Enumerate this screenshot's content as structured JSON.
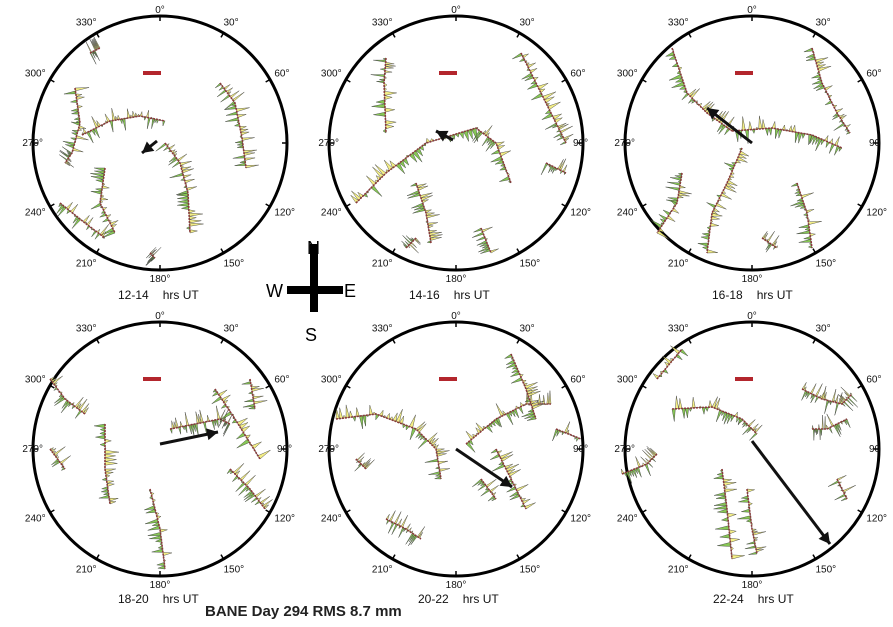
{
  "title": "BANE Day 294 RMS 8.7 mm",
  "hrs_label": "hrs UT",
  "compass": {
    "n": "N",
    "e": "E",
    "s": "S",
    "w": "W"
  },
  "panels": [
    {
      "label": "12-14",
      "ticks": {
        "0": "0°",
        "30": "30°",
        "60": "60°",
        "90": "",
        "120": "120°",
        "150": "150°",
        "180": "180°",
        "210": "210°",
        "240": "240°",
        "270": "270°",
        "300": "300°",
        "330": "330°"
      }
    },
    {
      "label": "14-16",
      "ticks": {
        "0": "0°",
        "30": "30°",
        "60": "60°",
        "90": "90°",
        "120": "120°",
        "150": "150°",
        "180": "180°",
        "210": "210°",
        "240": "240°",
        "270": "270°",
        "300": "300°",
        "330": "330°"
      }
    },
    {
      "label": "16-18",
      "ticks": {
        "0": "0°",
        "30": "30°",
        "60": "60°",
        "90": "90",
        "120": "120°",
        "150": "150°",
        "180": "180°",
        "210": "210°",
        "240": "240°",
        "270": "270°",
        "300": "300°",
        "330": "330°"
      }
    },
    {
      "label": "18-20",
      "ticks": {
        "0": "0°",
        "30": "30°",
        "60": "60°",
        "90": "90°",
        "120": "120°",
        "150": "150°",
        "180": "180°",
        "210": "210°",
        "240": "240°",
        "270": "270°",
        "300": "300°",
        "330": "330°"
      }
    },
    {
      "label": "20-22",
      "ticks": {
        "0": "0°",
        "30": "30°",
        "60": "60°",
        "90": "90°",
        "120": "120°",
        "150": "150°",
        "180": "180°",
        "210": "210°",
        "240": "240°",
        "270": "270°",
        "300": "300°",
        "330": "330°"
      }
    },
    {
      "label": "22-24",
      "ticks": {
        "0": "0°",
        "30": "30°",
        "60": "60°",
        "90": "90",
        "120": "120°",
        "150": "150°",
        "180": "180°",
        "210": "210°",
        "240": "240°",
        "270": "270°",
        "300": "300°",
        "330": "330°"
      }
    }
  ],
  "colors": {
    "positive": "#7ac143",
    "negative": "#f2ec7a",
    "track": "#8a3a3a",
    "scale_bar": "#b3262d",
    "arrow": "#111111",
    "circle": "#000000"
  }
}
